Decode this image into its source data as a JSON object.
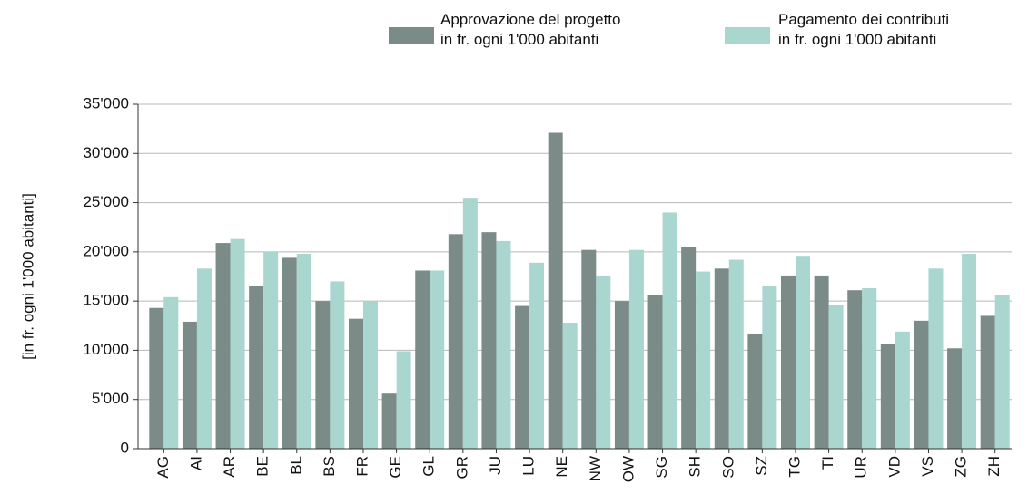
{
  "chart_data": {
    "type": "bar",
    "ylabel": "[in fr. ogni 1'000 abitanti]",
    "categories": [
      "AG",
      "AI",
      "AR",
      "BE",
      "BL",
      "BS",
      "FR",
      "GE",
      "GL",
      "GR",
      "JU",
      "LU",
      "NE",
      "NW",
      "OW",
      "SG",
      "SH",
      "SO",
      "SZ",
      "TG",
      "TI",
      "UR",
      "VD",
      "VS",
      "ZG",
      "ZH"
    ],
    "series": [
      {
        "name": "Approvazione del progetto\nin fr. ogni 1'000 abitanti",
        "color": "#7b8b88",
        "values": [
          14300,
          12900,
          20900,
          16500,
          19400,
          15000,
          13200,
          5600,
          18100,
          21800,
          22000,
          14500,
          32100,
          20200,
          15000,
          15600,
          20500,
          18300,
          11700,
          17600,
          17600,
          16100,
          10600,
          13000,
          10200,
          13500
        ]
      },
      {
        "name": "Pagamento dei contributi\nin fr. ogni 1'000 abitanti",
        "color": "#a9d6cf",
        "values": [
          15400,
          18300,
          21300,
          20000,
          19800,
          17000,
          15000,
          9900,
          18100,
          25500,
          21100,
          18900,
          12800,
          17600,
          20200,
          24000,
          18000,
          19200,
          16500,
          19600,
          14600,
          16300,
          11900,
          18300,
          19800,
          15600
        ]
      }
    ],
    "ylim": [
      0,
      35000
    ],
    "yticks": [
      0,
      {
        "value": 5000,
        "label": "5'000"
      },
      {
        "value": 10000,
        "label": "10'000"
      },
      {
        "value": 15000,
        "label": "15'000"
      },
      {
        "value": 20000,
        "label": "20'000"
      },
      {
        "value": 25000,
        "label": "25'000"
      },
      {
        "value": 30000,
        "label": "30'000"
      },
      {
        "value": 35000,
        "label": "35'000"
      }
    ],
    "grid": true
  }
}
